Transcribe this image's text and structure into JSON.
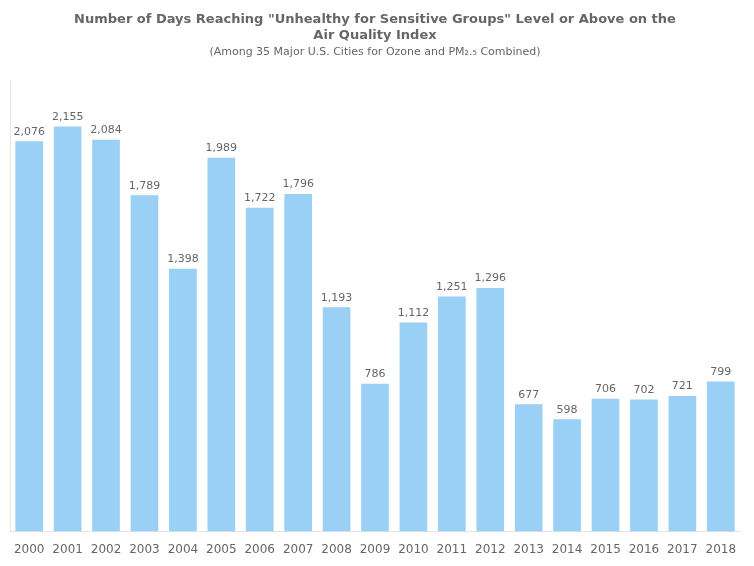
{
  "chart_data": {
    "type": "bar",
    "title": [
      "Number of Days Reaching \"Unhealthy for Sensitive Groups\" Level or Above on the",
      "Air Quality Index"
    ],
    "subtitle": "(Among 35 Major U.S. Cities for Ozone and PM₂.₅ Combined)",
    "categories": [
      2000,
      2001,
      2002,
      2003,
      2004,
      2005,
      2006,
      2007,
      2008,
      2009,
      2010,
      2011,
      2012,
      2013,
      2014,
      2015,
      2016,
      2017,
      2018
    ],
    "values": [
      2076,
      2155,
      2084,
      1789,
      1398,
      1989,
      1722,
      1796,
      1193,
      786,
      1112,
      1251,
      1296,
      677,
      598,
      706,
      702,
      721,
      799
    ],
    "value_labels": [
      "2,076",
      "2,155",
      "2,084",
      "1,789",
      "1,398",
      "1,989",
      "1,722",
      "1,796",
      "1,193",
      "786",
      "1,112",
      "1,251",
      "1,296",
      "677",
      "598",
      "706",
      "702",
      "721",
      "799"
    ],
    "data_labels": true,
    "ylim": [
      0,
      2400
    ],
    "tick_labels": "x",
    "grid": false
  }
}
